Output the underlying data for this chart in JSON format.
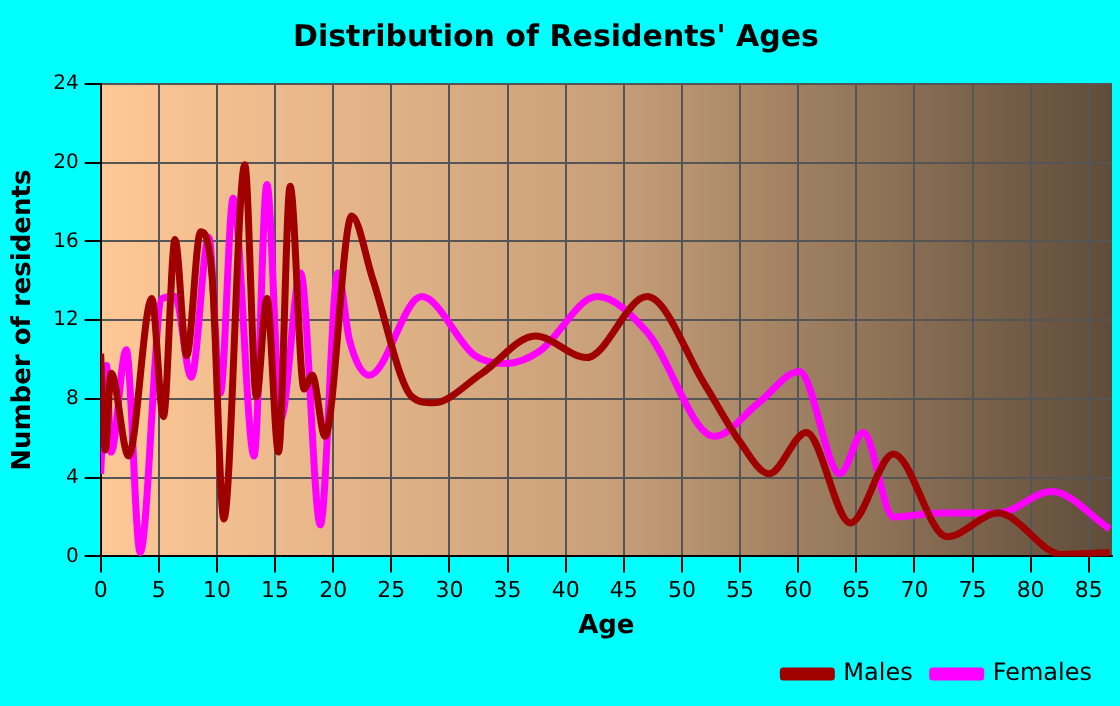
{
  "chart_data": {
    "type": "line",
    "title": "Distribution of Residents' Ages",
    "xlabel": "Age",
    "ylabel": "Number of residents",
    "xlim": [
      0,
      87
    ],
    "xticks": [
      0,
      5,
      10,
      15,
      20,
      25,
      30,
      35,
      40,
      45,
      50,
      55,
      60,
      65,
      70,
      75,
      80,
      85
    ],
    "ylim": [
      0,
      24
    ],
    "yticks": [
      0,
      4,
      8,
      12,
      16,
      20,
      24
    ],
    "grid": true,
    "legend": "bottom right",
    "marker": "none",
    "line_style": "solid",
    "series": [
      {
        "name": "Males",
        "color": "#a00000",
        "x": [
          0,
          0.4,
          0.9,
          2.4,
          4.4,
          5.4,
          6.4,
          7.4,
          8.6,
          9.6,
          10.6,
          12.4,
          13.4,
          14.3,
          15.3,
          16.3,
          17.5,
          18.2,
          19.3,
          21.6,
          23.4,
          26.8,
          28.6,
          32.8,
          37.4,
          41.8,
          47,
          52,
          54.9,
          57.5,
          60.7,
          64.5,
          68.2,
          72.8,
          77.2,
          82.7,
          86.8
        ],
        "values": [
          10.3,
          5.4,
          9.3,
          5.1,
          13.1,
          7.1,
          16.1,
          10.2,
          16.5,
          14.1,
          1.9,
          19.9,
          8.1,
          13.1,
          5.3,
          18.8,
          8.5,
          9.2,
          6.1,
          17.3,
          14.1,
          8.1,
          7.8,
          9.3,
          11.2,
          10.1,
          13.2,
          8.7,
          5.9,
          4.2,
          6.3,
          1.7,
          5.2,
          1,
          2.2,
          0.1,
          0.2
        ]
      },
      {
        "name": "Females",
        "color": "#ff00ff",
        "x": [
          0,
          0.5,
          0.9,
          2.2,
          3.4,
          5.3,
          6.4,
          7.8,
          9.3,
          10.3,
          11.4,
          13.2,
          14.3,
          15.5,
          17.2,
          18.9,
          20.4,
          21.4,
          23.1,
          27.6,
          32.2,
          34.8,
          37.7,
          42.7,
          47,
          52.8,
          56.6,
          60.1,
          63.6,
          65.6,
          68.2,
          72.3,
          77.2,
          81.8,
          86.8
        ],
        "values": [
          4.2,
          9.7,
          5.3,
          10.5,
          0.2,
          13.1,
          13.2,
          9.1,
          16.2,
          8.3,
          18.2,
          5.1,
          18.9,
          7,
          14.4,
          1.6,
          14.4,
          11,
          9.2,
          13.2,
          10.2,
          9.8,
          10.4,
          13.2,
          11.4,
          6.1,
          7.8,
          9.4,
          4.2,
          6.3,
          2,
          2.2,
          2.2,
          3.3,
          1.4
        ]
      }
    ]
  }
}
